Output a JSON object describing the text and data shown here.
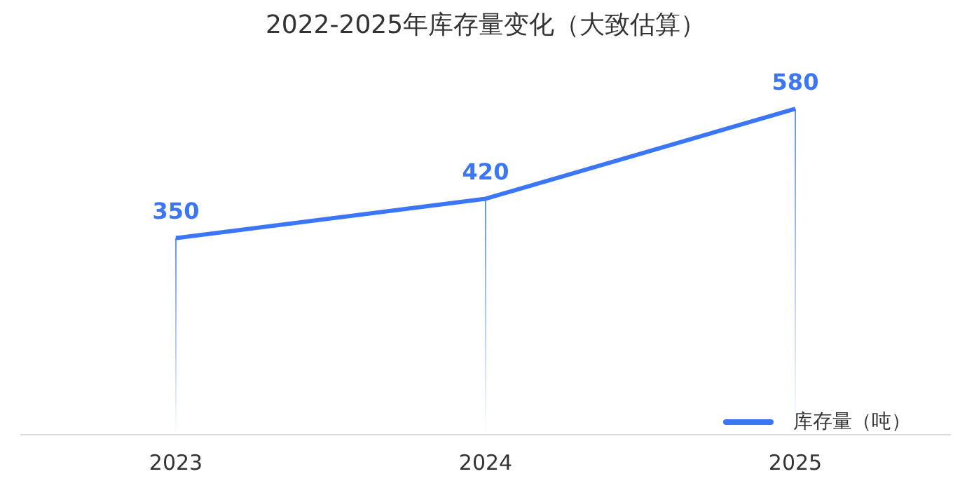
{
  "chart_data": {
    "type": "line",
    "title": "2022-2025年库存量变化（大致估算）",
    "categories": [
      "2023",
      "2024",
      "2025"
    ],
    "series": [
      {
        "name": "库存量（吨）",
        "color": "#3b76f6",
        "values": [
          350,
          420,
          580
        ]
      }
    ],
    "data_labels": true,
    "legend": "bottom right",
    "grid": "x",
    "marker": "none",
    "line_style": "solid",
    "tick_labels": "x"
  }
}
